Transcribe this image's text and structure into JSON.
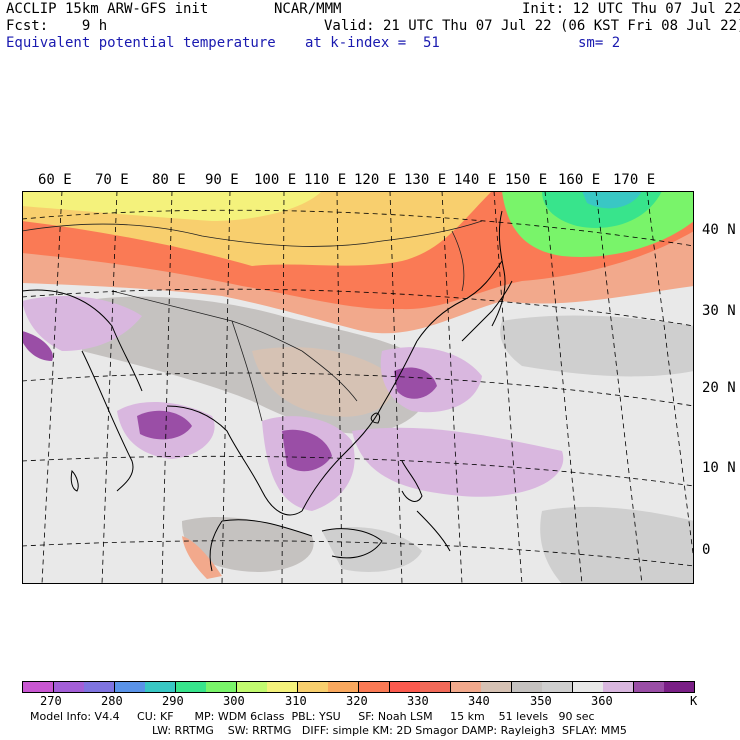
{
  "header": {
    "model": "ACCLIP 15km ARW-GFS init",
    "org": "NCAR/MMM",
    "init": "Init: 12 UTC Thu 07 Jul 22",
    "fcst": "Fcst:    9 h",
    "valid": "Valid: 21 UTC Thu 07 Jul 22 (06 KST Fri 08 Jul 22)",
    "field": "Equivalent potential temperature",
    "level": "at k-index =  51",
    "smooth": "sm= 2"
  },
  "map": {
    "lon_labels": [
      "60 E",
      "70 E",
      "80 E",
      "90 E",
      "100 E",
      "110 E",
      "120 E",
      "130 E",
      "140 E",
      "150 E",
      "160 E",
      "170 E"
    ],
    "lat_labels": [
      "40 N",
      "30 N",
      "20 N",
      "10 N",
      "0"
    ]
  },
  "colorbar": {
    "unit": "K",
    "labels": [
      "270",
      "280",
      "290",
      "300",
      "310",
      "320",
      "330",
      "340",
      "350",
      "360"
    ],
    "colors": [
      "#c957d2",
      "#a35fd7",
      "#7f74e0",
      "#5a93e8",
      "#39c7c4",
      "#38e48c",
      "#79f46a",
      "#c2fa70",
      "#f4f27c",
      "#f8cf6e",
      "#f9a85e",
      "#fa7a55",
      "#fb5a4e",
      "#f26a59",
      "#f2a98c",
      "#d6c2b4",
      "#c5c2c0",
      "#cfcfcf",
      "#e8e8e8",
      "#d9b7df",
      "#9a4ea6",
      "#7a1f86"
    ]
  },
  "footer": {
    "line1": "Model Info: V4.4     CU: KF      MP: WDM 6class  PBL: YSU     SF: Noah LSM     15 km    51 levels   90 sec",
    "line2": "LW: RRTMG    SW: RRTMG   DIFF: simple KM: 2D Smagor DAMP: Rayleigh3  SFLAY: MM5"
  }
}
